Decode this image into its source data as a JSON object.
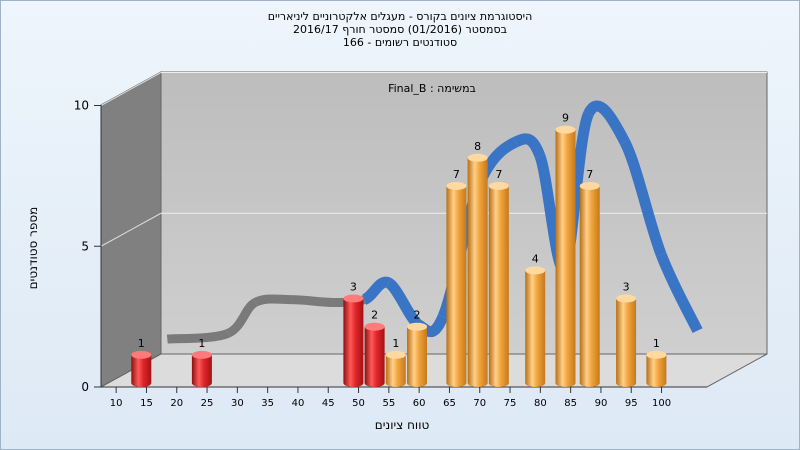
{
  "header": {
    "title_line1": "היסטוגרמת ציונים בקורס - מעגלים אלקטרוניים ליניאריים",
    "title_line2": "בסמסטר  (01/2016)  סמסטר חורף 2016/17",
    "title_line3": "166 - סטודנטים רשומים"
  },
  "chart_data": {
    "type": "bar",
    "annotation": "Final_B : במשימה",
    "xlabel": "טווח ציונים",
    "ylabel": "מספר סטודנטים",
    "x_ticks": [
      10,
      15,
      20,
      25,
      30,
      35,
      40,
      45,
      50,
      55,
      60,
      65,
      70,
      75,
      80,
      85,
      90,
      95,
      100
    ],
    "y_ticks": [
      0,
      5,
      10
    ],
    "ylim": [
      0,
      10
    ],
    "grid": true,
    "bars": [
      {
        "x": 12.5,
        "value": 1,
        "color": "red"
      },
      {
        "x": 22.5,
        "value": 1,
        "color": "red"
      },
      {
        "x": 47.5,
        "value": 3,
        "color": "red"
      },
      {
        "x": 51,
        "value": 2,
        "color": "red"
      },
      {
        "x": 54.5,
        "value": 1,
        "color": "orange"
      },
      {
        "x": 58,
        "value": 2,
        "color": "orange"
      },
      {
        "x": 64.5,
        "value": 7,
        "color": "orange"
      },
      {
        "x": 68,
        "value": 8,
        "color": "orange"
      },
      {
        "x": 71.5,
        "value": 7,
        "color": "orange"
      },
      {
        "x": 77.5,
        "value": 4,
        "color": "orange"
      },
      {
        "x": 82.5,
        "value": 9,
        "color": "orange"
      },
      {
        "x": 86.5,
        "value": 7,
        "color": "orange"
      },
      {
        "x": 92.5,
        "value": 3,
        "color": "orange"
      },
      {
        "x": 97.5,
        "value": 1,
        "color": "orange"
      }
    ],
    "curve": [
      {
        "x": 12.5,
        "y": 1,
        "color": "gray"
      },
      {
        "x": 22.5,
        "y": 1.2,
        "color": "gray"
      },
      {
        "x": 27,
        "y": 2.3,
        "color": "gray"
      },
      {
        "x": 33,
        "y": 2.4,
        "color": "gray"
      },
      {
        "x": 40,
        "y": 2.3,
        "color": "gray"
      },
      {
        "x": 45,
        "y": 2.4,
        "color": "gray"
      },
      {
        "x": 49,
        "y": 3.0,
        "color": "blue"
      },
      {
        "x": 54,
        "y": 1.5,
        "color": "blue"
      },
      {
        "x": 58,
        "y": 1.8,
        "color": "blue"
      },
      {
        "x": 64,
        "y": 6.5,
        "color": "blue"
      },
      {
        "x": 70,
        "y": 8.0,
        "color": "blue"
      },
      {
        "x": 74,
        "y": 7.5,
        "color": "blue"
      },
      {
        "x": 78,
        "y": 3.5,
        "color": "blue"
      },
      {
        "x": 82,
        "y": 9.0,
        "color": "blue"
      },
      {
        "x": 88,
        "y": 8.0,
        "color": "blue"
      },
      {
        "x": 94,
        "y": 4.0,
        "color": "blue"
      },
      {
        "x": 100,
        "y": 1.3,
        "color": "blue"
      }
    ],
    "colors": {
      "red_bar": "#e0262a",
      "orange_bar": "#f2a33a",
      "gray_curve": "#7a7a7a",
      "blue_curve": "#3a74c4",
      "back_wall": "#c4c4c4",
      "left_wall": "#808080",
      "floor": "#dddddd"
    }
  }
}
